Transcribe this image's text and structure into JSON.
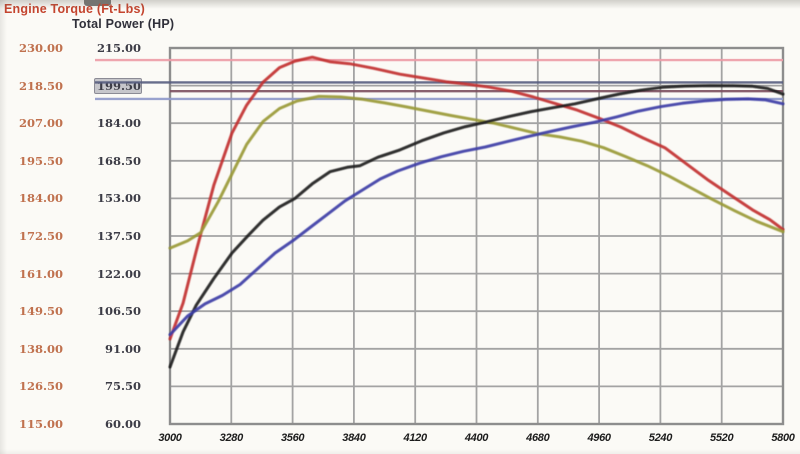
{
  "chart_data": {
    "type": "line",
    "title": "",
    "grid": true,
    "legend": "none",
    "x_axis": {
      "label": "",
      "range": [
        3000,
        5800
      ],
      "tick_step": 280,
      "ticks": [
        "3000",
        "3280",
        "3560",
        "3840",
        "4120",
        "4400",
        "4680",
        "4960",
        "5240",
        "5520",
        "5800"
      ]
    },
    "torque_axis": {
      "title": "Engine Torque (Ft-Lbs)",
      "title_color": "#c4442e",
      "tick_color": "#c0714e",
      "range": [
        115,
        230
      ],
      "tick_step": 11.5,
      "ticks": [
        "230.00",
        "218.50",
        "207.00",
        "195.50",
        "184.00",
        "172.50",
        "161.00",
        "149.50",
        "138.00",
        "126.50",
        "115.00"
      ]
    },
    "power_axis": {
      "title": "Total Power (HP)",
      "title_color": "#30303a",
      "tick_color": "#3c3c46",
      "range": [
        60,
        215
      ],
      "tick_step": 15.5,
      "ticks": [
        "215.00",
        "199.50",
        "184.00",
        "168.50",
        "153.00",
        "137.50",
        "122.00",
        "106.50",
        "91.00",
        "75.50",
        "60.00"
      ],
      "highlight_tick": "199.50",
      "highlight_tick_index": 1
    },
    "grid_color": "#a3a3a3",
    "border_color": "#8d8d8d",
    "background": "#fbfaf6",
    "series": [
      {
        "name": "torque-red",
        "axis": "torque",
        "color": "#c23230",
        "peak_value": 227.2,
        "points": [
          [
            3000,
            141
          ],
          [
            3060,
            152
          ],
          [
            3120,
            168
          ],
          [
            3200,
            188
          ],
          [
            3283,
            204
          ],
          [
            3350,
            212.5
          ],
          [
            3425,
            219.5
          ],
          [
            3500,
            224
          ],
          [
            3571,
            226
          ],
          [
            3650,
            227.2
          ],
          [
            3730,
            225.8
          ],
          [
            3820,
            225.2
          ],
          [
            3930,
            223.8
          ],
          [
            4050,
            222
          ],
          [
            4160,
            220.8
          ],
          [
            4260,
            219.7
          ],
          [
            4360,
            218.9
          ],
          [
            4460,
            218
          ],
          [
            4560,
            216.8
          ],
          [
            4660,
            215
          ],
          [
            4760,
            213
          ],
          [
            4860,
            211
          ],
          [
            4960,
            208.5
          ],
          [
            5060,
            205.8
          ],
          [
            5160,
            202.5
          ],
          [
            5260,
            199.5
          ],
          [
            5360,
            194.5
          ],
          [
            5460,
            189.5
          ],
          [
            5560,
            185
          ],
          [
            5660,
            180.5
          ],
          [
            5740,
            177.5
          ],
          [
            5800,
            174.5
          ]
        ]
      },
      {
        "name": "torque-olive",
        "axis": "torque",
        "color": "#9a9a38",
        "peak_value": 215.2,
        "points": [
          [
            3000,
            168.8
          ],
          [
            3080,
            171
          ],
          [
            3140,
            173.5
          ],
          [
            3220,
            183
          ],
          [
            3283,
            191.5
          ],
          [
            3350,
            200.5
          ],
          [
            3425,
            207.5
          ],
          [
            3500,
            211.5
          ],
          [
            3580,
            213.8
          ],
          [
            3680,
            215.2
          ],
          [
            3780,
            215
          ],
          [
            3880,
            214.3
          ],
          [
            3980,
            213.2
          ],
          [
            4080,
            212
          ],
          [
            4180,
            210.7
          ],
          [
            4280,
            209.4
          ],
          [
            4380,
            208.2
          ],
          [
            4480,
            207
          ],
          [
            4580,
            205.4
          ],
          [
            4680,
            203.8
          ],
          [
            4780,
            202.8
          ],
          [
            4880,
            201.5
          ],
          [
            4980,
            199.5
          ],
          [
            5080,
            196.8
          ],
          [
            5180,
            194
          ],
          [
            5280,
            190.8
          ],
          [
            5380,
            187.2
          ],
          [
            5480,
            183.6
          ],
          [
            5580,
            180.2
          ],
          [
            5680,
            177
          ],
          [
            5800,
            173.8
          ]
        ]
      },
      {
        "name": "power-black",
        "axis": "power",
        "color": "#1d1d1d",
        "peak_value": 199.5,
        "points": [
          [
            3000,
            83.5
          ],
          [
            3060,
            98
          ],
          [
            3120,
            109
          ],
          [
            3200,
            120
          ],
          [
            3283,
            130.5
          ],
          [
            3360,
            138
          ],
          [
            3425,
            144
          ],
          [
            3500,
            149.5
          ],
          [
            3571,
            153
          ],
          [
            3650,
            159
          ],
          [
            3731,
            164
          ],
          [
            3810,
            165.8
          ],
          [
            3868,
            166.5
          ],
          [
            3950,
            170
          ],
          [
            4050,
            173
          ],
          [
            4150,
            176.8
          ],
          [
            4250,
            180
          ],
          [
            4350,
            182.6
          ],
          [
            4450,
            184.6
          ],
          [
            4550,
            186.8
          ],
          [
            4650,
            188.8
          ],
          [
            4750,
            190.4
          ],
          [
            4850,
            192
          ],
          [
            4950,
            194
          ],
          [
            5050,
            196
          ],
          [
            5150,
            197.6
          ],
          [
            5250,
            198.8
          ],
          [
            5350,
            199.3
          ],
          [
            5467,
            199.5
          ],
          [
            5570,
            199.4
          ],
          [
            5660,
            199.2
          ],
          [
            5730,
            198.3
          ],
          [
            5800,
            196
          ]
        ]
      },
      {
        "name": "power-blue",
        "axis": "power",
        "color": "#3c3ea6",
        "peak_value": 194.0,
        "points": [
          [
            3000,
            96.8
          ],
          [
            3080,
            104.5
          ],
          [
            3160,
            109.5
          ],
          [
            3240,
            113
          ],
          [
            3320,
            117.5
          ],
          [
            3400,
            124
          ],
          [
            3480,
            130.5
          ],
          [
            3560,
            135.5
          ],
          [
            3640,
            141
          ],
          [
            3720,
            146.5
          ],
          [
            3800,
            152
          ],
          [
            3880,
            156.5
          ],
          [
            3960,
            161
          ],
          [
            4040,
            164.3
          ],
          [
            4140,
            167.5
          ],
          [
            4240,
            170.2
          ],
          [
            4340,
            172.4
          ],
          [
            4440,
            174.2
          ],
          [
            4540,
            176.4
          ],
          [
            4640,
            178.6
          ],
          [
            4740,
            180.6
          ],
          [
            4840,
            182.6
          ],
          [
            4940,
            184.4
          ],
          [
            5040,
            186.6
          ],
          [
            5140,
            189
          ],
          [
            5240,
            190.8
          ],
          [
            5340,
            192.2
          ],
          [
            5440,
            193.2
          ],
          [
            5540,
            193.8
          ],
          [
            5640,
            194
          ],
          [
            5720,
            193.6
          ],
          [
            5800,
            192
          ]
        ]
      }
    ],
    "peak_lines": [
      {
        "name": "red-torque-peak-line",
        "axis": "torque",
        "value": 226.3,
        "color": "#ec9ba6",
        "extends_into_labels": true
      },
      {
        "name": "black-power-peak-line",
        "axis": "power",
        "value": 200.8,
        "color": "#575d80",
        "extends_into_labels": true
      },
      {
        "name": "olive-torque-peak-line",
        "axis": "torque",
        "value": 216.8,
        "color": "#7c4f5f",
        "extends_into_labels": false
      },
      {
        "name": "blue-power-peak-line",
        "axis": "power",
        "value": 194.0,
        "color": "#8e98ca",
        "extends_into_labels": true
      }
    ]
  }
}
